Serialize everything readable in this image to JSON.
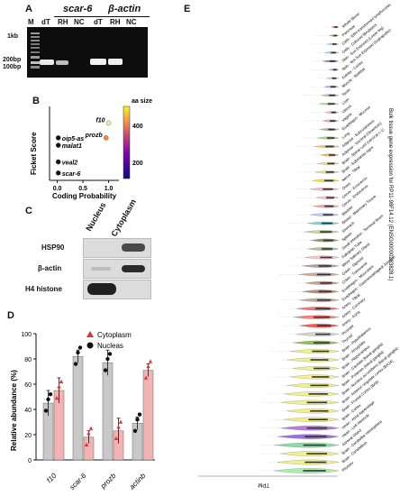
{
  "panelA": {
    "letter": "A",
    "gene1": "scar-6",
    "gene2": "β-actin",
    "lanes": [
      "M",
      "dT",
      "RH",
      "NC",
      "dT",
      "RH",
      "NC"
    ],
    "markers": [
      "1kb",
      "200bp",
      "100bp"
    ]
  },
  "panelB": {
    "letter": "B",
    "chart_data": {
      "type": "scatter",
      "xlabel": "Coding Probability",
      "ylabel": "Ficket Score",
      "colorbar_title": "aa size",
      "colorbar_ticks": [
        "400",
        "200"
      ],
      "xticks": [
        "0.0",
        "0.5",
        "1.0"
      ],
      "xlim": [
        -0.15,
        1.2
      ],
      "ylim": [
        0.2,
        0.6
      ],
      "points": [
        {
          "label": "f10",
          "x": 1.0,
          "y": 0.51,
          "color": "#e8f0a8"
        },
        {
          "label": "prozb",
          "x": 0.95,
          "y": 0.43,
          "color": "#f08a3c"
        },
        {
          "label": "oip5-as",
          "x": 0.02,
          "y": 0.43,
          "color": "#111111"
        },
        {
          "label": "malat1",
          "x": 0.02,
          "y": 0.39,
          "color": "#111111"
        },
        {
          "label": "veal2",
          "x": 0.02,
          "y": 0.3,
          "color": "#111111"
        },
        {
          "label": "scar-6",
          "x": 0.02,
          "y": 0.24,
          "color": "#111111"
        }
      ]
    }
  },
  "panelC": {
    "letter": "C",
    "col1": "Nucleus",
    "col2": "Cytoplasm",
    "rows": [
      "HSP90",
      "β-actin",
      "H4 histone"
    ]
  },
  "panelD": {
    "letter": "D",
    "chart_data": {
      "type": "bar",
      "ylabel": "Relative abundance (%)",
      "categories": [
        "f10",
        "scar-6",
        "prozb",
        "actinb"
      ],
      "ylim": [
        0,
        100
      ],
      "yticks": [
        "0",
        "20",
        "40",
        "60",
        "80",
        "100"
      ],
      "series": [
        {
          "name": "Nucleas",
          "values": [
            45,
            82,
            77,
            29
          ],
          "errors": [
            10,
            5,
            10,
            5
          ],
          "color": "#c8c8c8",
          "marker": "circle"
        },
        {
          "name": "Cytoplasm",
          "values": [
            55,
            18,
            23,
            71
          ],
          "errors": [
            10,
            5,
            10,
            5
          ],
          "color": "#f3b3b3",
          "marker": "triangle"
        }
      ],
      "legend": [
        "Cytoplasm",
        "Nucleas"
      ]
    }
  },
  "panelE": {
    "letter": "E",
    "axis_title": "Bulk tissue gene expression for RP11-98F14.12 (ENSG00000283828.1)",
    "tpm_label": "TPM",
    "tissues": [
      "Whole Blood",
      "Pancreas",
      "Cells - EBV-transformed lymphocytes",
      "Cells - Cultured fibroblasts",
      "Skin - Sun Exposed (Lower leg)",
      "Skin - Not Sun Exposed (Suprapubic)",
      "Kidney - Cortex",
      "Muscle - Skeletal",
      "Testis",
      "Liver",
      "Uterus",
      "Vagina",
      "Esophagus - Mucosa",
      "Lung",
      "Adipose - Subcutaneous",
      "Adipose - Visceral (Omentum)",
      "Brain - Spinal cord (cervical c-1)",
      "Brain - Substantia nigra",
      "Nerve - Tibial",
      "Ovary",
      "Cervix - Ectocervix",
      "Cervix - Endocervix",
      "Bladder",
      "Breast - Mammary Tissue",
      "Stomach",
      "Spleen",
      "Small Intestine - Terminal Ileum",
      "Fallopian Tube",
      "Minor Salivary Gland",
      "Colon - Sigmoid",
      "Colon - Transverse",
      "Esophagus - Muscularis",
      "Esophagus - Gastroesophageal Junction",
      "Artery - Tibial",
      "Artery - Coronary",
      "Artery - Aorta",
      "Prostate",
      "Thyroid",
      "Brain - Hypothalamus",
      "Brain - Amygdala",
      "Brain - Hippocampus",
      "Brain - Caudate (basal ganglia)",
      "Brain - Putamen (basal ganglia)",
      "Brain - Nucleus accumbens (basal ganglia)",
      "Brain - Anterior cingulate cortex (BA24)",
      "Brain - Frontal Cortex (BA9)",
      "Brain - Cortex",
      "Heart - Atrial Appendage",
      "Heart - Left Ventricle",
      "Adrenal Gland",
      "Brain - Cerebellar Hemisphere",
      "Brain - Cerebellum",
      "Pituitary"
    ],
    "colors": [
      "#e05050",
      "#c89060",
      "#9ad0e8",
      "#8fd0ff",
      "#4f6fd0",
      "#8fa0e8",
      "#bfe8e0",
      "#b0a0ff",
      "#b0b0b0",
      "#c8d890",
      "#f4b0d8",
      "#f09ab8",
      "#a0b070",
      "#a0e070",
      "#ffbf60",
      "#ffa840",
      "#f0e080",
      "#f0e080",
      "#ffe000",
      "#ffb0d0",
      "#ffc0d0",
      "#ff9aa0",
      "#c0c0ff",
      "#70d0e0",
      "#d0d090",
      "#8c8c60",
      "#a8c080",
      "#ffc0d0",
      "#b090a0",
      "#d0a090",
      "#cc9080",
      "#b08070",
      "#c0a090",
      "#ff6060",
      "#ff7070",
      "#ff4040",
      "#d0d0d0",
      "#80c040",
      "#f0f080",
      "#f0f080",
      "#f0f080",
      "#f0f080",
      "#f0f080",
      "#f0f080",
      "#f0f080",
      "#f0f080",
      "#f0f080",
      "#b070e0",
      "#9060e0",
      "#80d8a0",
      "#f0f080",
      "#f0f080",
      "#a0f0a0"
    ]
  }
}
